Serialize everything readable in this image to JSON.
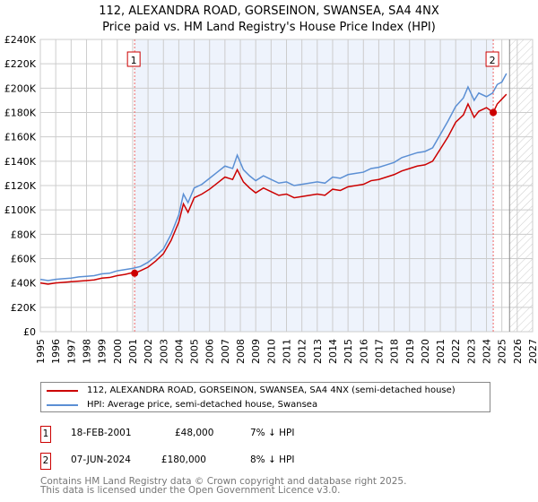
{
  "chart_data": {
    "type": "line",
    "title": "112, ALEXANDRA ROAD, GORSEINON, SWANSEA, SA4 4NX",
    "subtitle": "Price paid vs. HM Land Registry's House Price Index (HPI)",
    "xlim": [
      1995,
      2027
    ],
    "ylim": [
      0,
      240000
    ],
    "x_ticks": [
      "1995",
      "1996",
      "1997",
      "1998",
      "1999",
      "2000",
      "2001",
      "2002",
      "2003",
      "2004",
      "2005",
      "2006",
      "2007",
      "2008",
      "2009",
      "2010",
      "2011",
      "2012",
      "2013",
      "2014",
      "2015",
      "2016",
      "2017",
      "2018",
      "2019",
      "2020",
      "2021",
      "2022",
      "2023",
      "2024",
      "2025",
      "2026",
      "2027"
    ],
    "y_ticks": [
      "£0",
      "£20K",
      "£40K",
      "£60K",
      "£80K",
      "£100K",
      "£120K",
      "£140K",
      "£160K",
      "£180K",
      "£200K",
      "£220K",
      "£240K"
    ],
    "grid": true,
    "series": [
      {
        "name": "112, ALEXANDRA ROAD, GORSEINON, SWANSEA, SA4 4NX (semi-detached house)",
        "color": "#cc0000",
        "x": [
          1995,
          1995.5,
          1996,
          1996.5,
          1997,
          1997.5,
          1998,
          1998.5,
          1999,
          1999.5,
          2000,
          2000.5,
          2001,
          2001.13,
          2001.5,
          2002,
          2002.5,
          2003,
          2003.5,
          2004,
          2004.3,
          2004.6,
          2005,
          2005.5,
          2006,
          2006.5,
          2007,
          2007.5,
          2007.8,
          2008.2,
          2008.6,
          2009,
          2009.5,
          2010,
          2010.5,
          2011,
          2011.5,
          2012,
          2012.5,
          2013,
          2013.5,
          2014,
          2014.5,
          2015,
          2015.5,
          2016,
          2016.5,
          2017,
          2017.5,
          2018,
          2018.5,
          2019,
          2019.5,
          2020,
          2020.5,
          2021,
          2021.5,
          2022,
          2022.5,
          2022.8,
          2023.2,
          2023.5,
          2024,
          2024.44,
          2024.7,
          2025,
          2025.3
        ],
        "y": [
          40000,
          39000,
          40000,
          40500,
          41000,
          41500,
          42000,
          42500,
          44000,
          44500,
          46000,
          47000,
          48500,
          48000,
          50000,
          53000,
          58000,
          64000,
          75000,
          90000,
          105000,
          98000,
          110000,
          113000,
          117000,
          122000,
          127000,
          125000,
          133000,
          123000,
          118000,
          114000,
          118000,
          115000,
          112000,
          113000,
          110000,
          111000,
          112000,
          113000,
          112000,
          117000,
          116000,
          119000,
          120000,
          121000,
          124000,
          125000,
          127000,
          129000,
          132000,
          134000,
          136000,
          137000,
          140000,
          150000,
          160000,
          172000,
          178000,
          187000,
          176000,
          181000,
          184000,
          180000,
          187000,
          191000,
          195000
        ]
      },
      {
        "name": "HPI: Average price, semi-detached house, Swansea",
        "color": "#5b8fd4",
        "x": [
          1995,
          1995.5,
          1996,
          1996.5,
          1997,
          1997.5,
          1998,
          1998.5,
          1999,
          1999.5,
          2000,
          2000.5,
          2001,
          2001.5,
          2002,
          2002.5,
          2003,
          2003.5,
          2004,
          2004.3,
          2004.6,
          2005,
          2005.5,
          2006,
          2006.5,
          2007,
          2007.5,
          2007.8,
          2008.2,
          2008.6,
          2009,
          2009.5,
          2010,
          2010.5,
          2011,
          2011.5,
          2012,
          2012.5,
          2013,
          2013.5,
          2014,
          2014.5,
          2015,
          2015.5,
          2016,
          2016.5,
          2017,
          2017.5,
          2018,
          2018.5,
          2019,
          2019.5,
          2020,
          2020.5,
          2021,
          2021.5,
          2022,
          2022.5,
          2022.8,
          2023.2,
          2023.5,
          2024,
          2024.4,
          2024.7,
          2025,
          2025.3
        ],
        "y": [
          43000,
          42000,
          43000,
          43500,
          44000,
          45000,
          45500,
          46000,
          47500,
          48000,
          50000,
          51000,
          52000,
          53500,
          57000,
          62000,
          68000,
          80000,
          96000,
          113000,
          106000,
          118000,
          121000,
          126000,
          131000,
          136000,
          134000,
          145000,
          133000,
          128000,
          124000,
          128000,
          125000,
          122000,
          123000,
          120000,
          121000,
          122000,
          123000,
          122000,
          127000,
          126000,
          129000,
          130000,
          131000,
          134000,
          135000,
          137000,
          139000,
          143000,
          145000,
          147000,
          148000,
          151000,
          162000,
          173000,
          185000,
          192000,
          201000,
          190000,
          196000,
          193000,
          196000,
          203000,
          205000,
          212000
        ]
      }
    ],
    "annotations": [
      {
        "label": "1",
        "x": 2001.13,
        "y": 48000
      },
      {
        "label": "2",
        "x": 2024.44,
        "y": 180000
      }
    ]
  },
  "legend": {
    "items": [
      "112, ALEXANDRA ROAD, GORSEINON, SWANSEA, SA4 4NX (semi-detached house)",
      "HPI: Average price, semi-detached house, Swansea"
    ]
  },
  "transactions": [
    {
      "num": "1",
      "date": "18-FEB-2001",
      "price": "£48,000",
      "hpi": "7% ↓ HPI"
    },
    {
      "num": "2",
      "date": "07-JUN-2024",
      "price": "£180,000",
      "hpi": "8% ↓ HPI"
    }
  ],
  "footer": {
    "line1": "Contains HM Land Registry data © Crown copyright and database right 2025.",
    "line2": "This data is licensed under the Open Government Licence v3.0."
  }
}
